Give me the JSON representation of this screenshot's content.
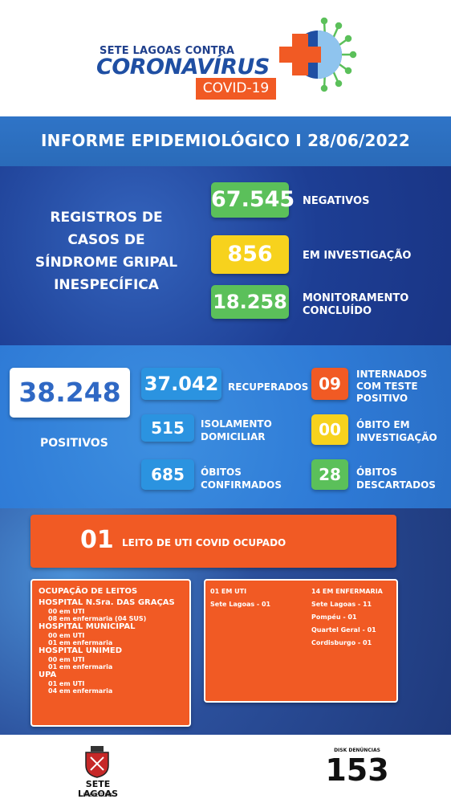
{
  "header": {
    "logo_top": "SETE LAGOAS CONTRA",
    "logo_main": "CORONAVÍRUS",
    "logo_covid": "COVID-19"
  },
  "title": "INFORME EPIDEMIOLÓGICO I 28/06/2022",
  "section1": {
    "label": "REGISTROS DE CASOS DE SÍNDROME GRIPAL INESPECÍFICA",
    "negativos": {
      "value": "67.545",
      "label": "NEGATIVOS"
    },
    "investigacao": {
      "value": "856",
      "label": "EM INVESTIGAÇÃO"
    },
    "monitoramento": {
      "value": "18.258",
      "label_1": "MONITORAMENTO",
      "label_2": "CONCLUÍDO"
    }
  },
  "section2": {
    "positivos": {
      "value": "38.248",
      "label": "POSITIVOS"
    },
    "recuperados": {
      "value": "37.042",
      "label": "RECUPERADOS"
    },
    "isolamento": {
      "value": "515",
      "label_1": "ISOLAMENTO",
      "label_2": "DOMICILIAR"
    },
    "obitos_confirmados": {
      "value": "685",
      "label_1": "ÓBITOS",
      "label_2": "CONFIRMADOS"
    },
    "internados": {
      "value": "09",
      "label_1": "INTERNADOS",
      "label_2": "COM TESTE",
      "label_3": "POSITIVO"
    },
    "obito_investigacao": {
      "value": "00",
      "label_1": "ÓBITO EM",
      "label_2": "INVESTIGAÇÃO"
    },
    "obitos_descartados": {
      "value": "28",
      "label_1": "ÓBITOS",
      "label_2": "DESCARTADOS"
    }
  },
  "section3": {
    "leito": {
      "value": "01",
      "label": "LEITO DE UTI COVID OCUPADO"
    },
    "ocupacao": {
      "title": "OCUPAÇÃO DE LEITOS",
      "lines": [
        {
          "text": "HOSPITAL N.Sra. DAS GRAÇAS",
          "heading": true
        },
        {
          "text": "00 em UTI",
          "heading": false
        },
        {
          "text": "08 em enfermaria (04 SUS)",
          "heading": false
        },
        {
          "text": "HOSPITAL MUNICIPAL",
          "heading": true
        },
        {
          "text": "00 em UTI",
          "heading": false
        },
        {
          "text": "01 em enfermaria",
          "heading": false
        },
        {
          "text": "HOSPITAL UNIMED",
          "heading": true
        },
        {
          "text": "00 em UTI",
          "heading": false
        },
        {
          "text": "01 em enfermaria",
          "heading": false
        },
        {
          "text": "UPA",
          "heading": true
        },
        {
          "text": "01 em UTI",
          "heading": false
        },
        {
          "text": "04 em enfermaria",
          "heading": false
        }
      ]
    },
    "uti": {
      "title": "01 EM UTI",
      "items": [
        "Sete Lagoas - 01"
      ]
    },
    "enfermaria": {
      "title": "14 EM ENFERMARIA",
      "items": [
        "Sete Lagoas - 11",
        "Pompéu - 01",
        "Quartel Geral - 01",
        "Cordisburgo - 01"
      ]
    }
  },
  "footer": {
    "city_name": "SETE LAGOAS",
    "prefeitura": "PREFEITURA",
    "disk_label": "DISK DENÚNCIAS",
    "disk_number": "153"
  },
  "colors": {
    "green": "#5bc05a",
    "yellow": "#f7d21d",
    "orange": "#f15a24",
    "blue_light": "#2b93e0",
    "navy": "#1f3f8c"
  }
}
